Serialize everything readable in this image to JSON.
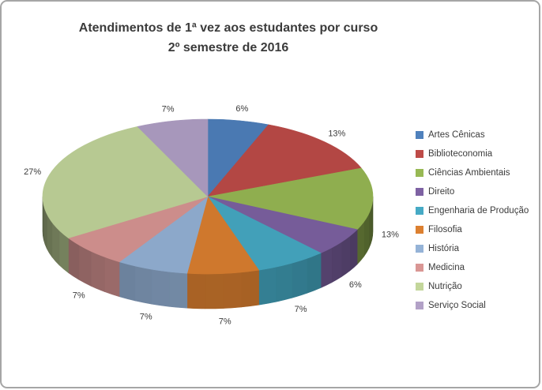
{
  "chart_data": {
    "type": "pie",
    "effect": "3d",
    "title_lines": [
      "Atendimentos de 1ª vez aos estudantes por curso",
      "2º semestre de 2016"
    ],
    "legend_position": "right",
    "data_labels": "percent-outside-end",
    "label_suffix": "%",
    "start_angle_deg": 0,
    "slices": [
      {
        "label": "Artes Cênicas",
        "value": 6,
        "color": "#4F81BD"
      },
      {
        "label": "Biblioteconomia",
        "value": 13,
        "color": "#BE4B48"
      },
      {
        "label": "Ciências Ambientais",
        "value": 13,
        "color": "#98B954"
      },
      {
        "label": "Direito",
        "value": 6,
        "color": "#7E62A3"
      },
      {
        "label": "Engenharia de Produção",
        "value": 7,
        "color": "#46AAC5"
      },
      {
        "label": "Filosofia",
        "value": 7,
        "color": "#DC8030"
      },
      {
        "label": "História",
        "value": 7,
        "color": "#95B3D7"
      },
      {
        "label": "Medicina",
        "value": 7,
        "color": "#D99694"
      },
      {
        "label": "Nutrição",
        "value": 27,
        "color": "#C3D69B"
      },
      {
        "label": "Serviço Social",
        "value": 7,
        "color": "#B2A1C7"
      }
    ],
    "text_color": "#3B3B3B"
  }
}
